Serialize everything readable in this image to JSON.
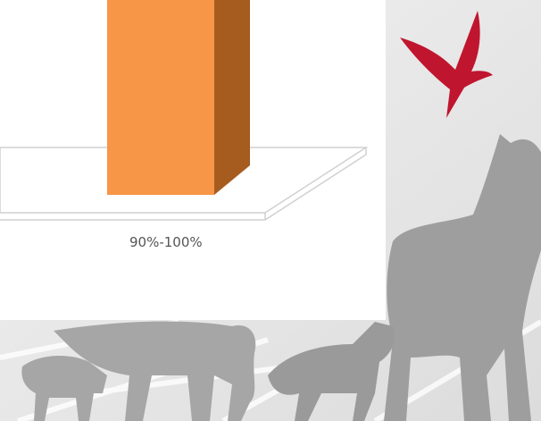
{
  "chart_label": "90%-100%"
}
